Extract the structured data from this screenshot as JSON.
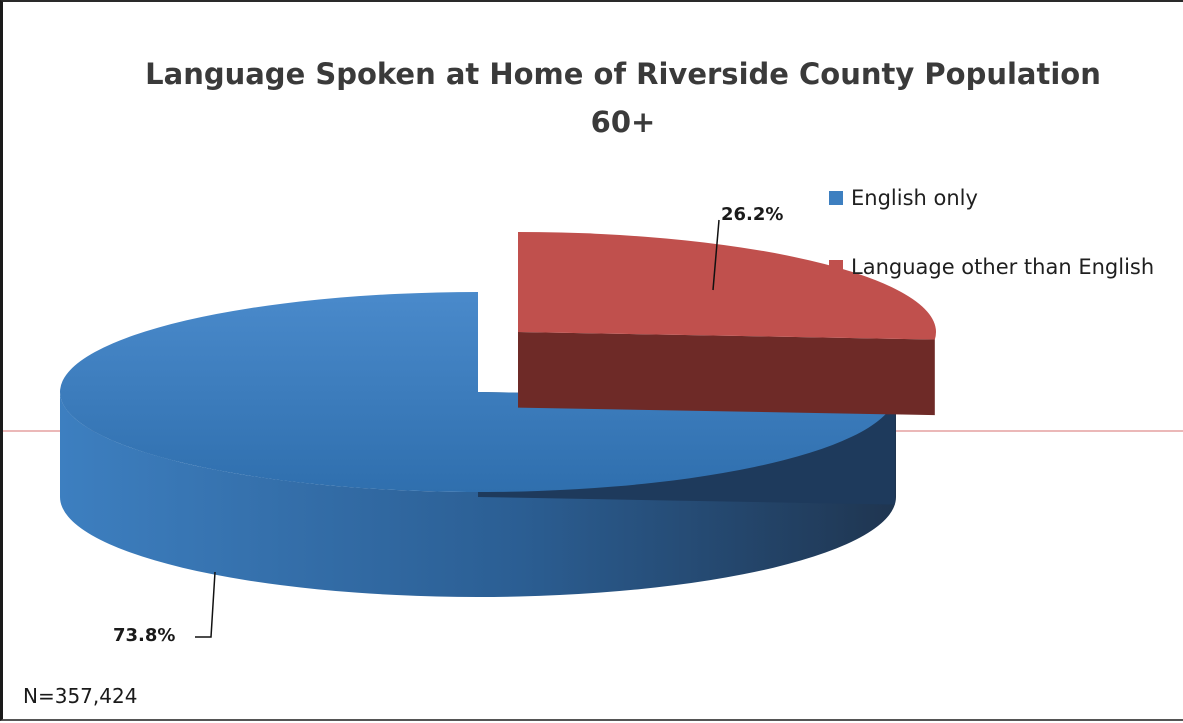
{
  "chart_data": {
    "type": "pie",
    "title": "Language Spoken at Home of Riverside County Population",
    "subtitle": "60+",
    "categories": [
      "English only",
      "Language other than English"
    ],
    "values": [
      73.8,
      26.2
    ],
    "data_labels": [
      "73.8%",
      "26.2%"
    ],
    "colors": [
      "#3d7fc0",
      "#c0504d"
    ],
    "side_colors": [
      "#2b5e93",
      "#6e2a27"
    ],
    "legend_position": "right",
    "note": "N=357,424",
    "style": "3d-exploded"
  }
}
